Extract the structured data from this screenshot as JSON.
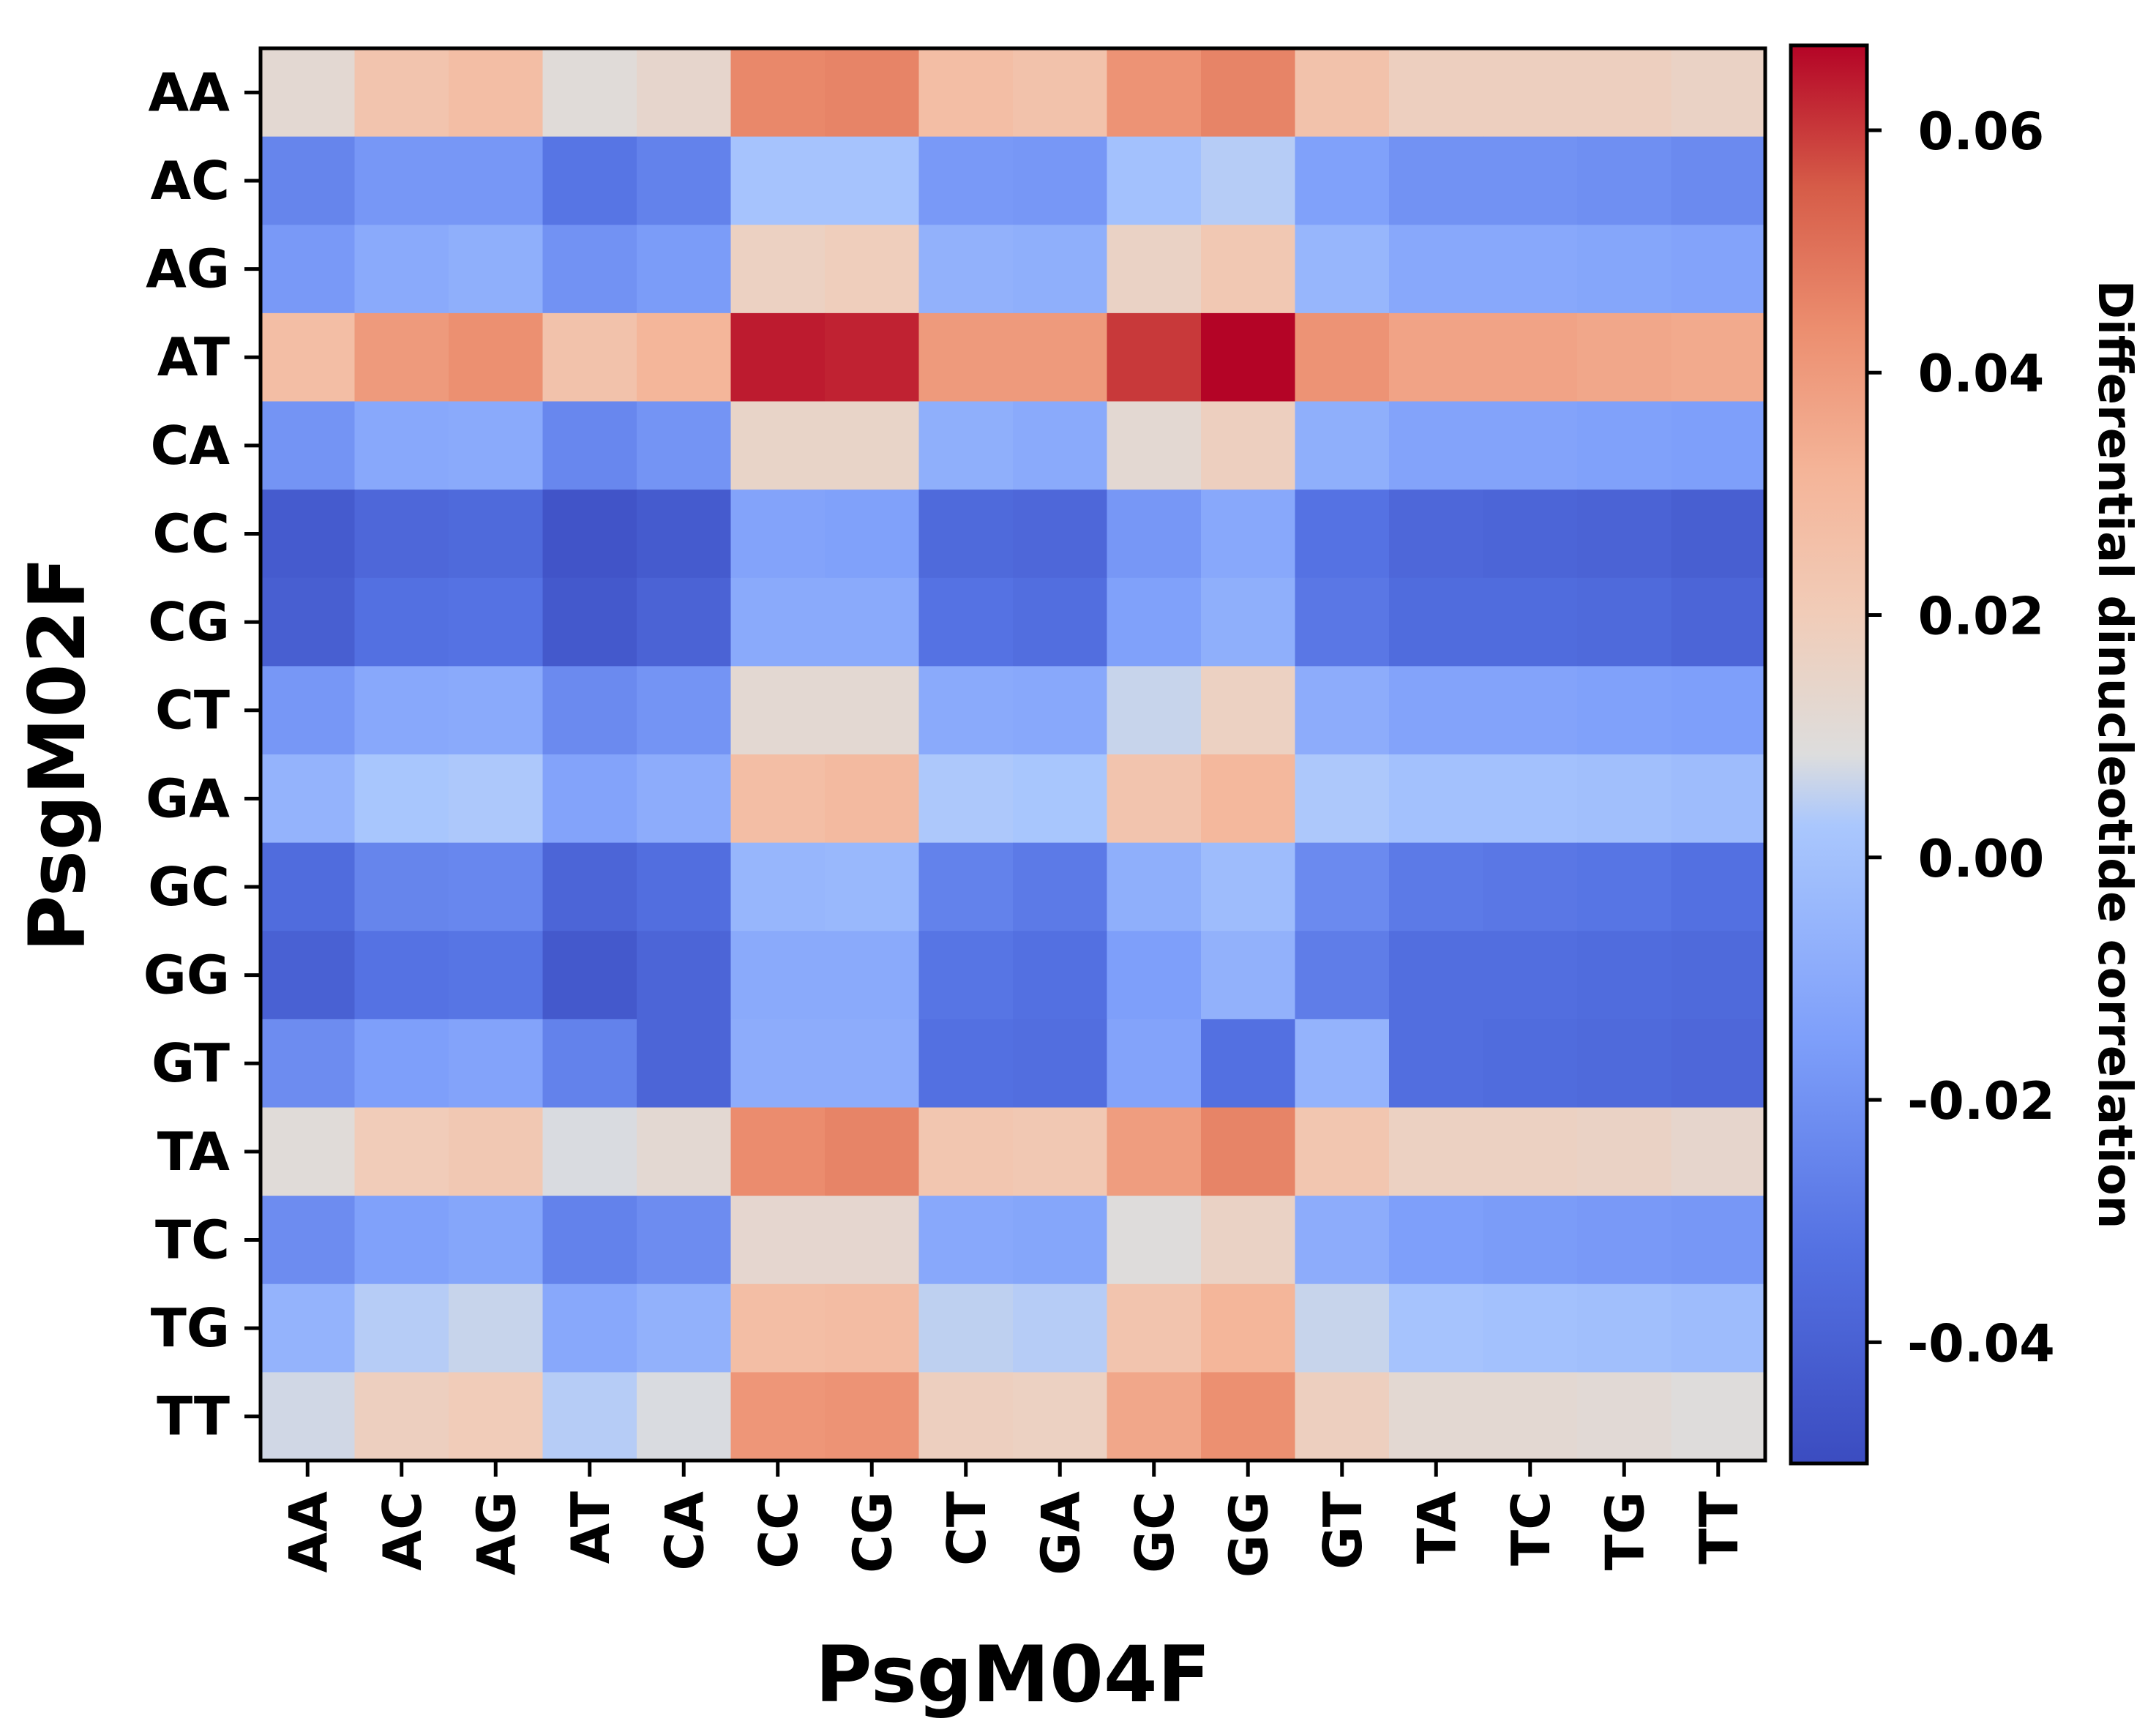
{
  "chart_data": {
    "type": "heatmap",
    "title": "",
    "xlabel": "PsgM04F",
    "ylabel": "PsgM02F",
    "x_categories": [
      "AA",
      "AC",
      "AG",
      "AT",
      "CA",
      "CC",
      "CG",
      "CT",
      "GA",
      "GC",
      "GG",
      "GT",
      "TA",
      "TC",
      "TG",
      "TT"
    ],
    "y_categories": [
      "AA",
      "AC",
      "AG",
      "AT",
      "CA",
      "CC",
      "CG",
      "CT",
      "GA",
      "GC",
      "GG",
      "GT",
      "TA",
      "TC",
      "TG",
      "TT"
    ],
    "values": [
      [
        0.012,
        0.024,
        0.027,
        0.01,
        0.014,
        0.045,
        0.046,
        0.027,
        0.025,
        0.042,
        0.046,
        0.025,
        0.018,
        0.018,
        0.018,
        0.016
      ],
      [
        -0.025,
        -0.018,
        -0.018,
        -0.031,
        -0.026,
        0.001,
        0.001,
        -0.017,
        -0.018,
        0.0,
        0.004,
        -0.014,
        -0.02,
        -0.02,
        -0.021,
        -0.023
      ],
      [
        -0.017,
        -0.01,
        -0.008,
        -0.02,
        -0.016,
        0.017,
        0.019,
        -0.007,
        -0.008,
        0.016,
        0.022,
        -0.005,
        -0.011,
        -0.011,
        -0.012,
        -0.013
      ],
      [
        0.027,
        0.04,
        0.043,
        0.025,
        0.031,
        0.064,
        0.063,
        0.04,
        0.04,
        0.06,
        0.067,
        0.042,
        0.037,
        0.037,
        0.036,
        0.035
      ],
      [
        -0.019,
        -0.011,
        -0.01,
        -0.024,
        -0.019,
        0.015,
        0.015,
        -0.008,
        -0.01,
        0.012,
        0.018,
        -0.008,
        -0.013,
        -0.013,
        -0.014,
        -0.015
      ],
      [
        -0.043,
        -0.037,
        -0.036,
        -0.046,
        -0.043,
        -0.013,
        -0.014,
        -0.036,
        -0.037,
        -0.018,
        -0.011,
        -0.032,
        -0.037,
        -0.038,
        -0.039,
        -0.041
      ],
      [
        -0.041,
        -0.033,
        -0.032,
        -0.044,
        -0.039,
        -0.01,
        -0.01,
        -0.032,
        -0.034,
        -0.014,
        -0.008,
        -0.03,
        -0.035,
        -0.035,
        -0.036,
        -0.038
      ],
      [
        -0.018,
        -0.011,
        -0.01,
        -0.023,
        -0.019,
        0.012,
        0.012,
        -0.01,
        -0.011,
        0.006,
        0.017,
        -0.009,
        -0.013,
        -0.013,
        -0.014,
        -0.015
      ],
      [
        -0.006,
        0.002,
        0.003,
        -0.013,
        -0.009,
        0.027,
        0.029,
        0.003,
        0.002,
        0.024,
        0.03,
        0.003,
        0.0,
        0.0,
        -0.001,
        -0.002
      ],
      [
        -0.035,
        -0.025,
        -0.024,
        -0.038,
        -0.034,
        -0.005,
        -0.004,
        -0.026,
        -0.029,
        -0.008,
        -0.002,
        -0.023,
        -0.029,
        -0.03,
        -0.031,
        -0.033
      ],
      [
        -0.04,
        -0.032,
        -0.031,
        -0.044,
        -0.038,
        -0.01,
        -0.01,
        -0.031,
        -0.033,
        -0.015,
        -0.007,
        -0.028,
        -0.034,
        -0.034,
        -0.035,
        -0.036
      ],
      [
        -0.022,
        -0.015,
        -0.013,
        -0.026,
        -0.038,
        -0.009,
        -0.009,
        -0.033,
        -0.034,
        -0.013,
        -0.033,
        -0.006,
        -0.034,
        -0.035,
        -0.036,
        -0.037
      ],
      [
        0.01,
        0.02,
        0.022,
        0.008,
        0.012,
        0.044,
        0.046,
        0.023,
        0.022,
        0.039,
        0.046,
        0.023,
        0.017,
        0.017,
        0.016,
        0.014
      ],
      [
        -0.022,
        -0.014,
        -0.012,
        -0.026,
        -0.022,
        0.013,
        0.013,
        -0.011,
        -0.012,
        0.009,
        0.016,
        -0.009,
        -0.015,
        -0.016,
        -0.017,
        -0.018
      ],
      [
        -0.006,
        0.004,
        0.006,
        -0.011,
        -0.007,
        0.027,
        0.028,
        0.005,
        0.004,
        0.024,
        0.031,
        0.006,
        0.001,
        0.0,
        -0.001,
        -0.002
      ],
      [
        0.007,
        0.018,
        0.02,
        0.004,
        0.008,
        0.041,
        0.042,
        0.018,
        0.017,
        0.036,
        0.043,
        0.018,
        0.012,
        0.012,
        0.011,
        0.009
      ]
    ],
    "colorbar": {
      "label": "Differential dinucleotide correlation",
      "vmin": -0.05,
      "vmax": 0.067,
      "colormap": "coolwarm",
      "ticks": [
        -0.04,
        -0.02,
        0.0,
        0.02,
        0.04,
        0.06
      ],
      "tick_labels": [
        "-0.04",
        "-0.02",
        "0.00",
        "0.02",
        "0.04",
        "0.06"
      ]
    },
    "grid": false
  }
}
